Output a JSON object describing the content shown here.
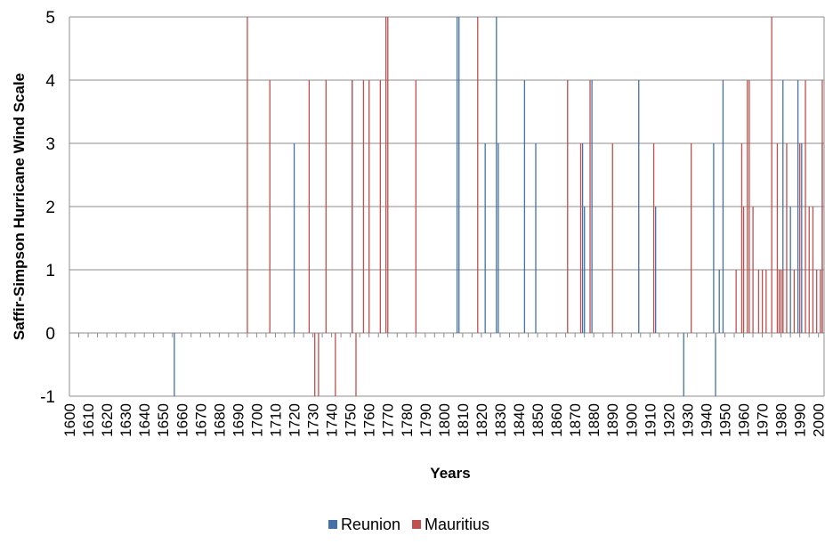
{
  "chart_data": {
    "type": "bar",
    "title": "",
    "xlabel": "Years",
    "ylabel": "Saffir-Simpson Hurricane Wind Scale",
    "ylim": [
      -1,
      5
    ],
    "xlim": [
      1600,
      2003
    ],
    "y_ticks": [
      "-1",
      "0",
      "1",
      "2",
      "3",
      "4",
      "5"
    ],
    "x_ticks": [
      "1600",
      "1610",
      "1620",
      "1630",
      "1640",
      "1650",
      "1660",
      "1670",
      "1680",
      "1690",
      "1700",
      "1710",
      "1720",
      "1730",
      "1740",
      "1750",
      "1760",
      "1770",
      "1780",
      "1790",
      "1800",
      "1810",
      "1820",
      "1830",
      "1840",
      "1850",
      "1860",
      "1870",
      "1880",
      "1890",
      "1900",
      "1910",
      "1920",
      "1930",
      "1940",
      "1950",
      "1960",
      "1970",
      "1980",
      "1990",
      "2000"
    ],
    "grid": "horizontal",
    "legend_position": "bottom",
    "series": [
      {
        "name": "Reunion",
        "color": "#4472a8",
        "points": [
          [
            1656,
            -1
          ],
          [
            1720,
            3
          ],
          [
            1751,
            4
          ],
          [
            1807,
            5
          ],
          [
            1808,
            5
          ],
          [
            1822,
            3
          ],
          [
            1828,
            5
          ],
          [
            1829,
            3
          ],
          [
            1843,
            4
          ],
          [
            1849,
            3
          ],
          [
            1874,
            3
          ],
          [
            1875,
            2
          ],
          [
            1879,
            4
          ],
          [
            1904,
            4
          ],
          [
            1913,
            2
          ],
          [
            1928,
            -1
          ],
          [
            1944,
            3
          ],
          [
            1945,
            -1
          ],
          [
            1947,
            1
          ],
          [
            1949,
            4
          ],
          [
            1981,
            4
          ],
          [
            1985,
            2
          ],
          [
            1989,
            4
          ],
          [
            1991,
            3
          ],
          [
            2002,
            3
          ]
        ]
      },
      {
        "name": "Mauritius",
        "color": "#c0504d",
        "points": [
          [
            1695,
            5
          ],
          [
            1707,
            4
          ],
          [
            1728,
            4
          ],
          [
            1731,
            -1
          ],
          [
            1733,
            -1
          ],
          [
            1737,
            4
          ],
          [
            1742,
            -1
          ],
          [
            1751,
            4
          ],
          [
            1753,
            -1
          ],
          [
            1757,
            4
          ],
          [
            1760,
            4
          ],
          [
            1766,
            4
          ],
          [
            1769,
            5
          ],
          [
            1770,
            5
          ],
          [
            1785,
            4
          ],
          [
            1818,
            5
          ],
          [
            1866,
            4
          ],
          [
            1873,
            3
          ],
          [
            1878,
            4
          ],
          [
            1890,
            3
          ],
          [
            1912,
            3
          ],
          [
            1932,
            3
          ],
          [
            1956,
            1
          ],
          [
            1959,
            3
          ],
          [
            1960,
            2
          ],
          [
            1962,
            4
          ],
          [
            1963,
            4
          ],
          [
            1965,
            2
          ],
          [
            1968,
            1
          ],
          [
            1970,
            1
          ],
          [
            1972,
            1
          ],
          [
            1975,
            5
          ],
          [
            1978,
            3
          ],
          [
            1979,
            1
          ],
          [
            1980,
            1
          ],
          [
            1981,
            1
          ],
          [
            1983,
            3
          ],
          [
            1987,
            1
          ],
          [
            1990,
            3
          ],
          [
            1993,
            4
          ],
          [
            1995,
            2
          ],
          [
            1997,
            2
          ],
          [
            1999,
            1
          ],
          [
            2001,
            1
          ],
          [
            2002,
            4
          ]
        ]
      }
    ]
  }
}
